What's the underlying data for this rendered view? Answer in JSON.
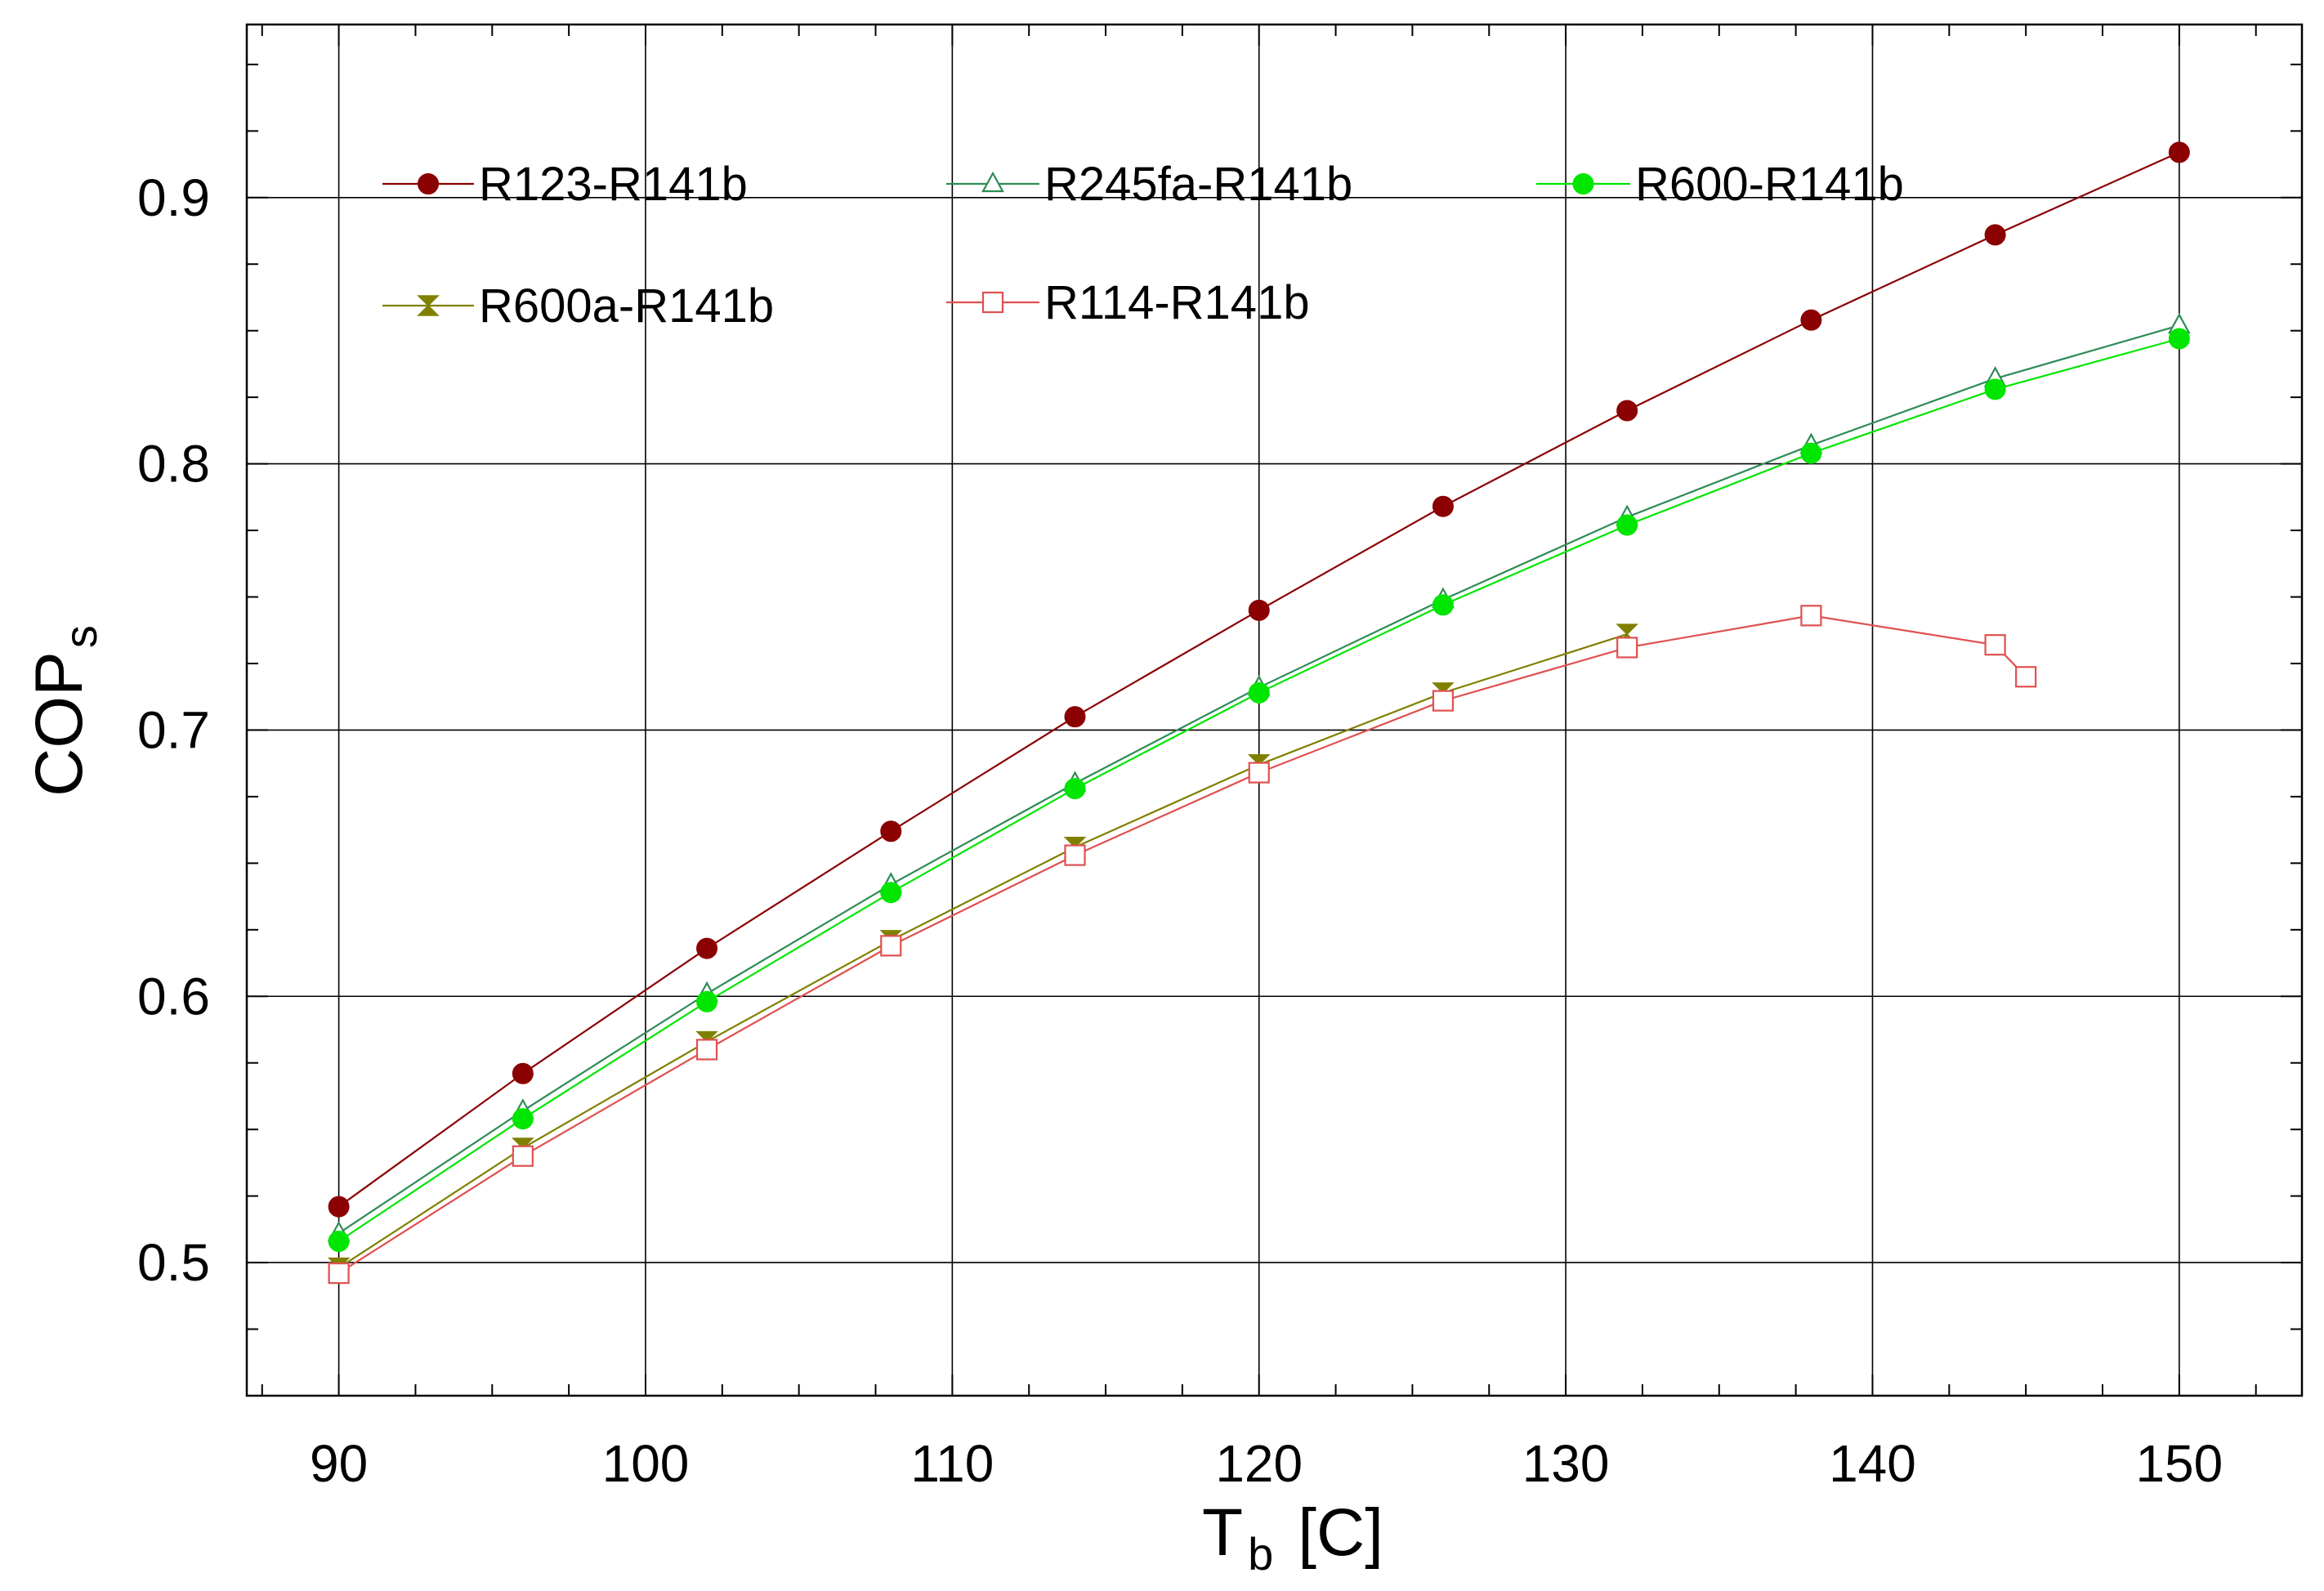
{
  "chart_data": {
    "type": "line",
    "title": "",
    "xlabel": {
      "main": "T",
      "sub": "b",
      "unit": "[C]"
    },
    "ylabel": {
      "main": "COP",
      "sub": "s"
    },
    "xlim": [
      87,
      154
    ],
    "ylim": [
      0.45,
      0.965
    ],
    "x_ticks": [
      90,
      100,
      110,
      120,
      130,
      140,
      150
    ],
    "y_ticks": [
      0.5,
      0.6,
      0.7,
      0.8,
      0.9
    ],
    "x_tick_labels": [
      "90",
      "100",
      "110",
      "120",
      "130",
      "140",
      "150"
    ],
    "y_tick_labels": [
      "0.5",
      "0.6",
      "0.7",
      "0.8",
      "0.9"
    ],
    "grid": true,
    "legend": "top-left, inside plot",
    "series": [
      {
        "name": "R123-R141b",
        "color": "#8b0000",
        "marker": "filled-circle",
        "x": [
          90,
          96,
          102,
          108,
          114,
          120,
          126,
          132,
          138,
          144,
          150
        ],
        "values": [
          0.521,
          0.571,
          0.618,
          0.662,
          0.705,
          0.745,
          0.784,
          0.82,
          0.854,
          0.886,
          0.917
        ]
      },
      {
        "name": "R245fa-R141b",
        "color": "#2e8b57",
        "marker": "open-triangle",
        "x": [
          90,
          96,
          102,
          108,
          114,
          120,
          126,
          132,
          138,
          144,
          150
        ],
        "values": [
          0.511,
          0.557,
          0.601,
          0.642,
          0.68,
          0.716,
          0.749,
          0.78,
          0.807,
          0.832,
          0.852
        ]
      },
      {
        "name": "R600-R141b",
        "color": "#00e600",
        "marker": "filled-circle",
        "x": [
          90,
          96,
          102,
          108,
          114,
          120,
          126,
          132,
          138,
          144,
          150
        ],
        "values": [
          0.508,
          0.554,
          0.598,
          0.639,
          0.678,
          0.714,
          0.747,
          0.777,
          0.804,
          0.828,
          0.847
        ]
      },
      {
        "name": "R600a-R141b",
        "color": "#808000",
        "marker": "bowtie",
        "x": [
          90,
          96,
          102,
          108,
          114,
          120,
          126,
          132
        ],
        "values": [
          0.498,
          0.543,
          0.583,
          0.621,
          0.656,
          0.687,
          0.714,
          0.736
        ]
      },
      {
        "name": "R114-R141b",
        "color": "#e05050",
        "marker": "open-square",
        "x": [
          90,
          96,
          102,
          108,
          114,
          120,
          126,
          132,
          138,
          144,
          145
        ],
        "values": [
          0.496,
          0.54,
          0.58,
          0.619,
          0.653,
          0.684,
          0.711,
          0.731,
          0.743,
          0.732,
          0.72
        ]
      }
    ]
  }
}
